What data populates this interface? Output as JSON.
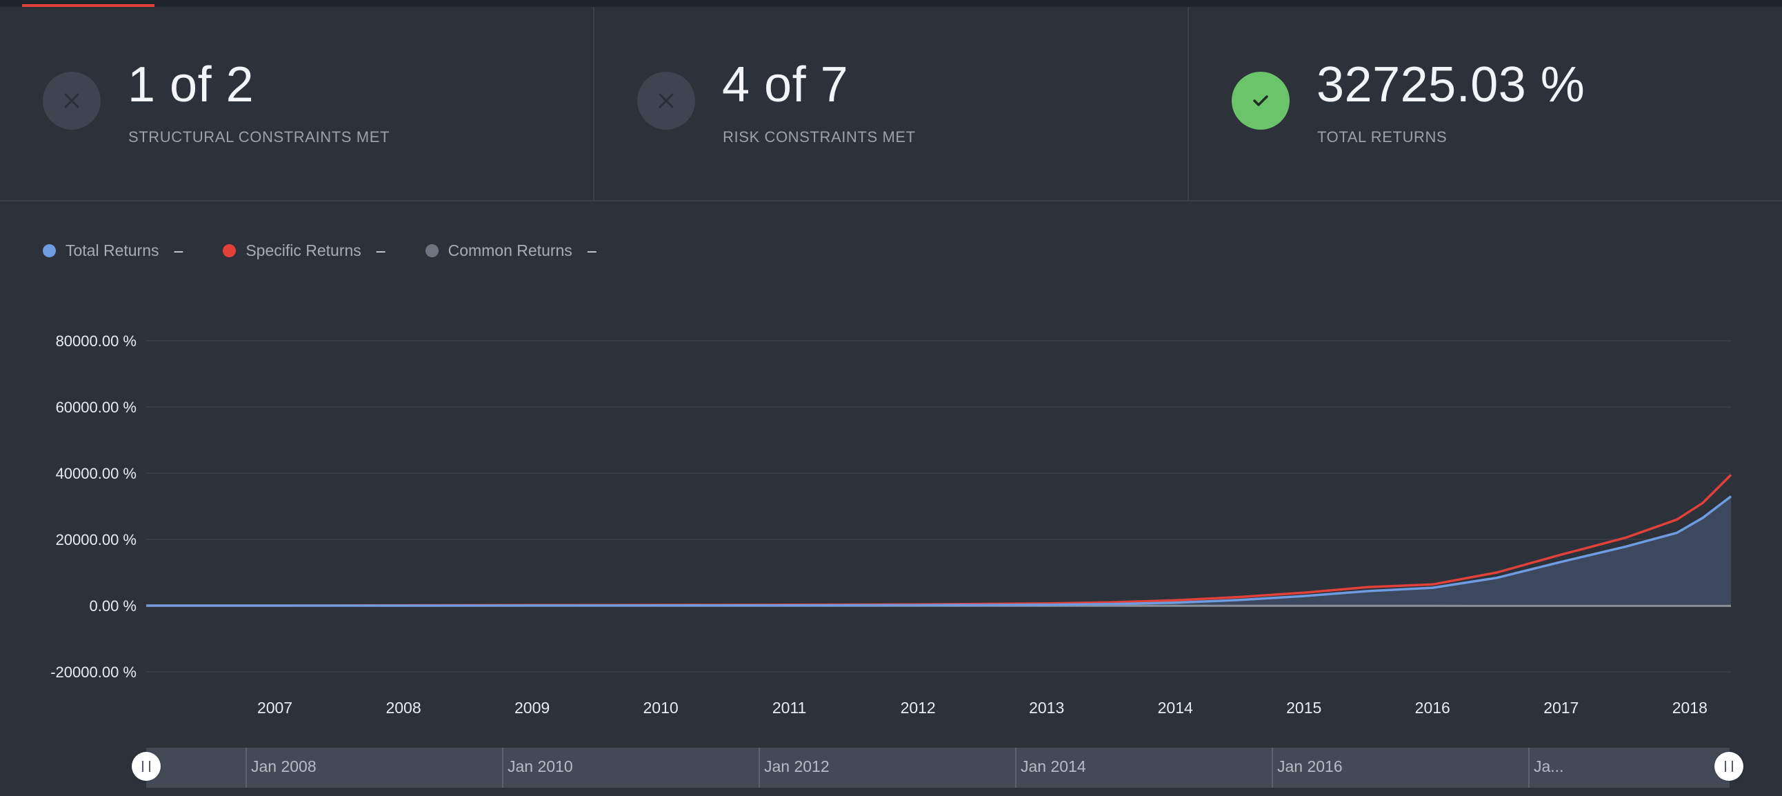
{
  "stats": [
    {
      "value": "1 of 2",
      "label": "STRUCTURAL CONSTRAINTS MET",
      "status": "fail"
    },
    {
      "value": "4 of 7",
      "label": "RISK CONSTRAINTS MET",
      "status": "fail"
    },
    {
      "value": "32725.03 %",
      "label": "TOTAL RETURNS",
      "status": "ok"
    }
  ],
  "legend": [
    {
      "label": "Total Returns",
      "value": "–",
      "color": "#6f9ce0"
    },
    {
      "label": "Specific Returns",
      "value": "–",
      "color": "#e2413a"
    },
    {
      "label": "Common Returns",
      "value": "–",
      "color": "#6f7580"
    }
  ],
  "colors": {
    "accent": "#e2413a",
    "ok": "#6cc46a",
    "total": "#6f9ce0",
    "specific": "#e2413a",
    "common": "#8a909a"
  },
  "navigator": {
    "labels": [
      "Jan 2008",
      "Jan 2010",
      "Jan 2012",
      "Jan 2014",
      "Jan 2016",
      "Ja..."
    ]
  },
  "chart_data": {
    "type": "area",
    "title": "",
    "xlabel": "",
    "ylabel": "",
    "x_ticks": [
      "2007",
      "2008",
      "2009",
      "2010",
      "2011",
      "2012",
      "2013",
      "2014",
      "2015",
      "2016",
      "2017",
      "2018"
    ],
    "y_ticks": [
      "80000.00 %",
      "60000.00 %",
      "40000.00 %",
      "20000.00 %",
      "0.00 %",
      "-20000.00 %"
    ],
    "ylim": [
      -20000,
      80000
    ],
    "xlim": [
      2006.0,
      2018.32
    ],
    "grid": true,
    "legend_position": "top-left",
    "x": [
      2006.0,
      2007.0,
      2008.0,
      2009.0,
      2010.0,
      2011.0,
      2012.0,
      2013.0,
      2013.5,
      2014.0,
      2014.5,
      2015.0,
      2015.5,
      2016.0,
      2016.5,
      2017.0,
      2017.5,
      2017.9,
      2018.1,
      2018.32
    ],
    "series": [
      {
        "name": "Total Returns",
        "values": [
          0,
          0,
          10,
          20,
          40,
          60,
          120,
          250,
          450,
          900,
          1700,
          2900,
          4400,
          5400,
          8400,
          13200,
          17800,
          22000,
          26500,
          33000
        ]
      },
      {
        "name": "Specific Returns",
        "values": [
          0,
          0,
          80,
          160,
          200,
          240,
          380,
          650,
          1000,
          1600,
          2600,
          3900,
          5600,
          6400,
          10000,
          15400,
          20500,
          26000,
          31000,
          39500
        ]
      },
      {
        "name": "Common Returns",
        "values": [
          0,
          0,
          -30,
          -30,
          -40,
          -40,
          -50,
          -50,
          -60,
          -60,
          -60,
          -70,
          -70,
          -70,
          -80,
          -80,
          -80,
          -80,
          -90,
          -90
        ]
      }
    ]
  }
}
